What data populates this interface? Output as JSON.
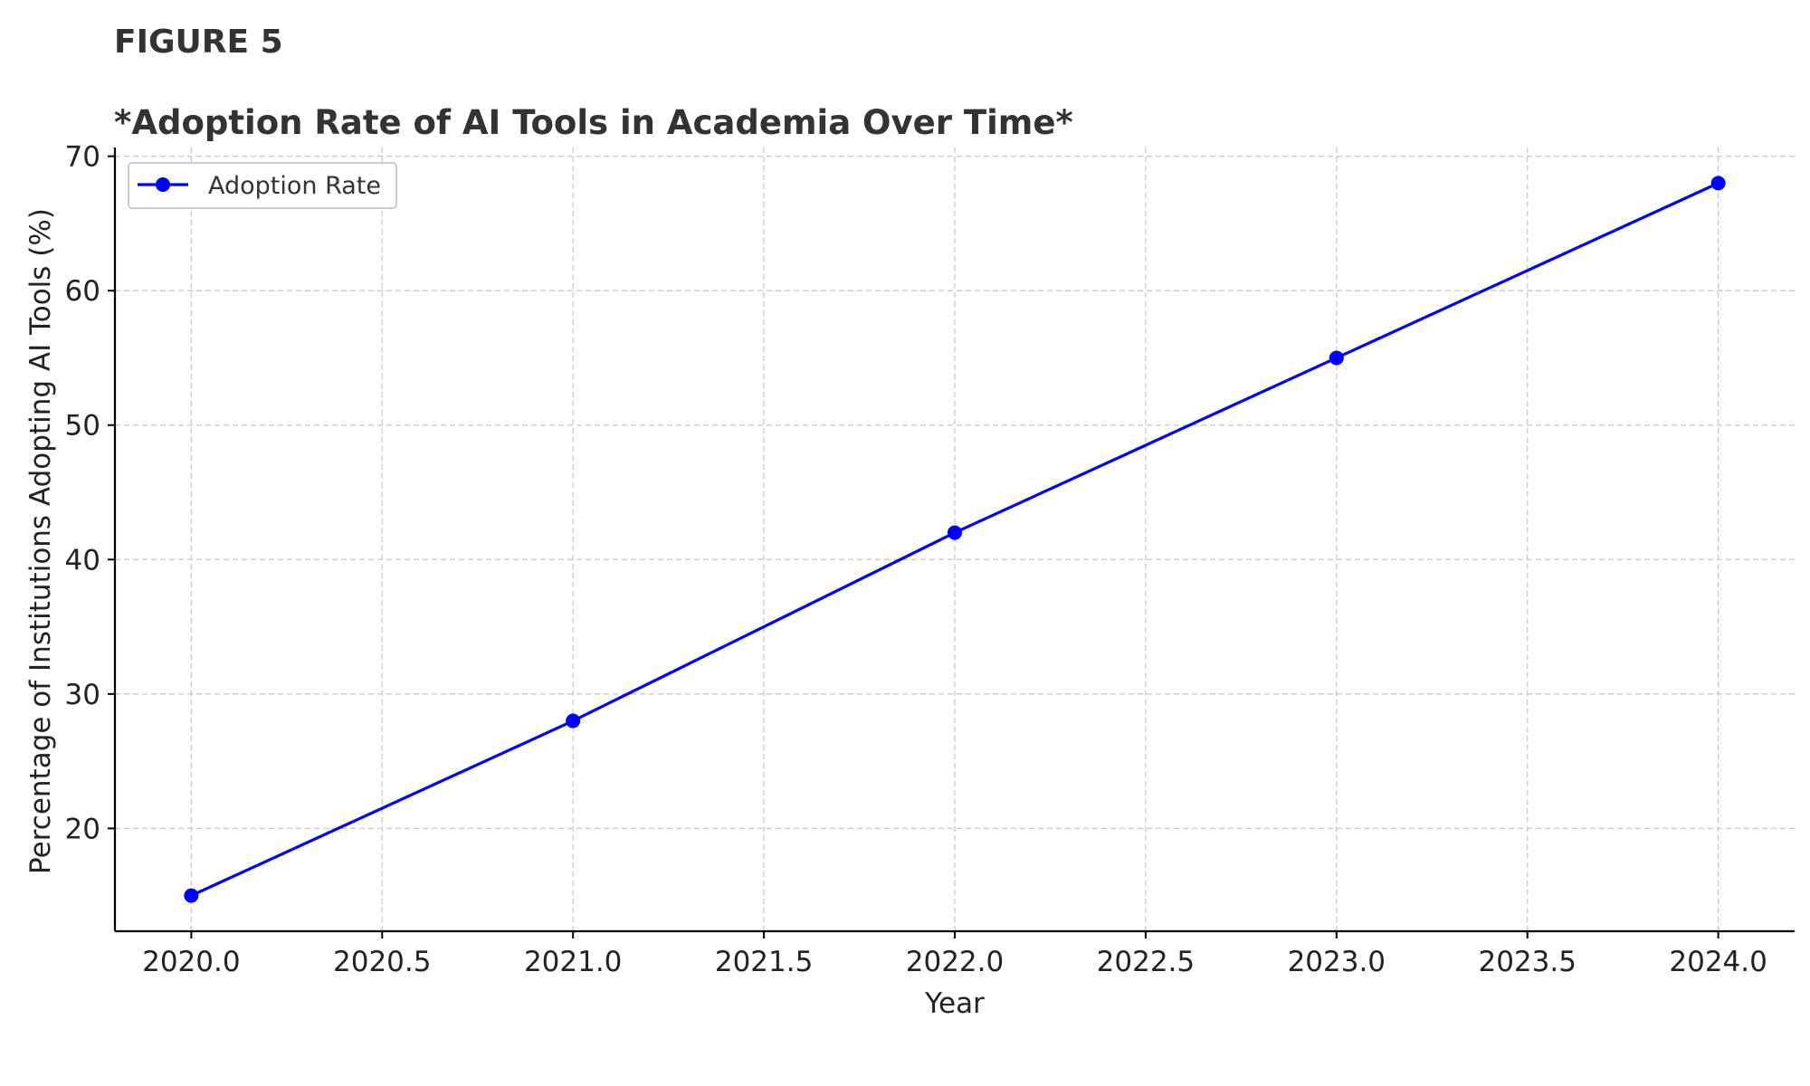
{
  "figure_label": "FIGURE 5",
  "chart_data": {
    "type": "line",
    "title": "*Adoption Rate of AI Tools in Academia Over Time*",
    "xlabel": "Year",
    "ylabel": "Percentage of Institutions Adopting AI Tools (%)",
    "x": [
      2020,
      2021,
      2022,
      2023,
      2024
    ],
    "series": [
      {
        "name": "Adoption Rate",
        "values": [
          15,
          28,
          42,
          55,
          68
        ],
        "color": "#0000ff",
        "marker": "circle"
      }
    ],
    "xticks": [
      2020.0,
      2020.5,
      2021.0,
      2021.5,
      2022.0,
      2022.5,
      2023.0,
      2023.5,
      2024.0
    ],
    "xtick_labels": [
      "2020.0",
      "2020.5",
      "2021.0",
      "2021.5",
      "2022.0",
      "2022.5",
      "2023.0",
      "2023.5",
      "2024.0"
    ],
    "yticks": [
      20,
      30,
      40,
      50,
      60,
      70
    ],
    "ytick_labels": [
      "20",
      "30",
      "40",
      "50",
      "60",
      "70"
    ],
    "xlim": [
      2019.8,
      2024.2
    ],
    "ylim": [
      12.35,
      70.65
    ],
    "grid": true,
    "grid_style": "dashed",
    "legend_position": "upper left"
  }
}
